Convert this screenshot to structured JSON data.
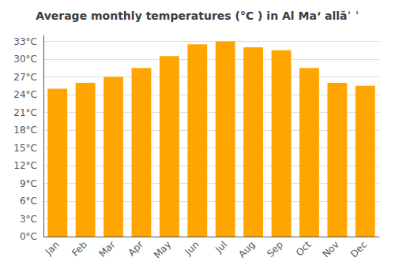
{
  "chart_data": {
    "type": "bar",
    "title": "Average monthly temperatures (°C ) in Al Ma‘ allāʾ ʾ",
    "categories": [
      "Jan",
      "Feb",
      "Mar",
      "Apr",
      "May",
      "Jun",
      "Jul",
      "Aug",
      "Sep",
      "Oct",
      "Nov",
      "Dec"
    ],
    "values": [
      25,
      26,
      27,
      28.5,
      30.5,
      32.5,
      33,
      32,
      31.5,
      28.5,
      26,
      25.5
    ],
    "color": "#FFA500",
    "ylim": [
      0,
      34
    ],
    "yticks": [
      {
        "value": 0,
        "label": "0°C"
      },
      {
        "value": 3,
        "label": "3°C"
      },
      {
        "value": 6,
        "label": "6°C"
      },
      {
        "value": 9,
        "label": "9°C"
      },
      {
        "value": 12,
        "label": "12°C"
      },
      {
        "value": 15,
        "label": "15°C"
      },
      {
        "value": 18,
        "label": "18°C"
      },
      {
        "value": 21,
        "label": "21°C"
      },
      {
        "value": 24,
        "label": "24°C"
      },
      {
        "value": 27,
        "label": "27°C"
      },
      {
        "value": 30,
        "label": "30°C"
      },
      {
        "value": 33,
        "label": "33°C"
      }
    ],
    "grid": true
  }
}
